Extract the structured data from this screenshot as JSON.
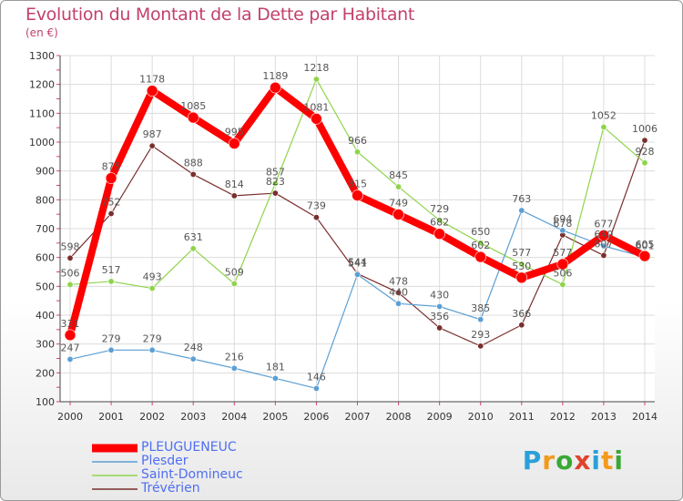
{
  "header": {
    "title": "Evolution du Montant de la Dette par Habitant",
    "subtitle": "(en €)"
  },
  "logo": {
    "letters": [
      "P",
      "r",
      "o",
      "x",
      "i",
      "t",
      "i"
    ],
    "colors": [
      "#2aa0d8",
      "#f39a1c",
      "#3aa835",
      "#e0422b",
      "#2aa0d8",
      "#f39a1c",
      "#3aa835"
    ]
  },
  "chart_data": {
    "type": "line",
    "title": "Evolution du Montant de la Dette par Habitant",
    "subtitle": "(en €)",
    "xlabel": "",
    "ylabel": "",
    "x": [
      "2000",
      "2001",
      "2002",
      "2003",
      "2004",
      "2005",
      "2006",
      "2007",
      "2008",
      "2009",
      "2010",
      "2011",
      "2012",
      "2013",
      "2014"
    ],
    "ylim": [
      100,
      1300
    ],
    "yticks": [
      100,
      200,
      300,
      400,
      500,
      600,
      700,
      800,
      900,
      1000,
      1100,
      1200,
      1300
    ],
    "grid": true,
    "legend": "bottom-left",
    "series": [
      {
        "name": "PLEUGUENEUC",
        "color": "#ff0000",
        "values": [
          331,
          875,
          1178,
          1085,
          995,
          1189,
          1081,
          815,
          749,
          682,
          602,
          530,
          577,
          677,
          605
        ]
      },
      {
        "name": "Plesder",
        "color": "#5b9fd4",
        "values": [
          247,
          279,
          279,
          248,
          216,
          181,
          146,
          541,
          440,
          430,
          385,
          763,
          694,
          640,
          601
        ]
      },
      {
        "name": "Saint-Domineuc",
        "color": "#8fd44c",
        "values": [
          506,
          517,
          493,
          631,
          509,
          857,
          1218,
          966,
          845,
          729,
          650,
          577,
          506,
          1052,
          928
        ]
      },
      {
        "name": "Trévérien",
        "color": "#7a2e2e",
        "values": [
          598,
          752,
          987,
          888,
          814,
          823,
          739,
          544,
          478,
          356,
          293,
          366,
          678,
          607,
          1006
        ]
      }
    ]
  }
}
